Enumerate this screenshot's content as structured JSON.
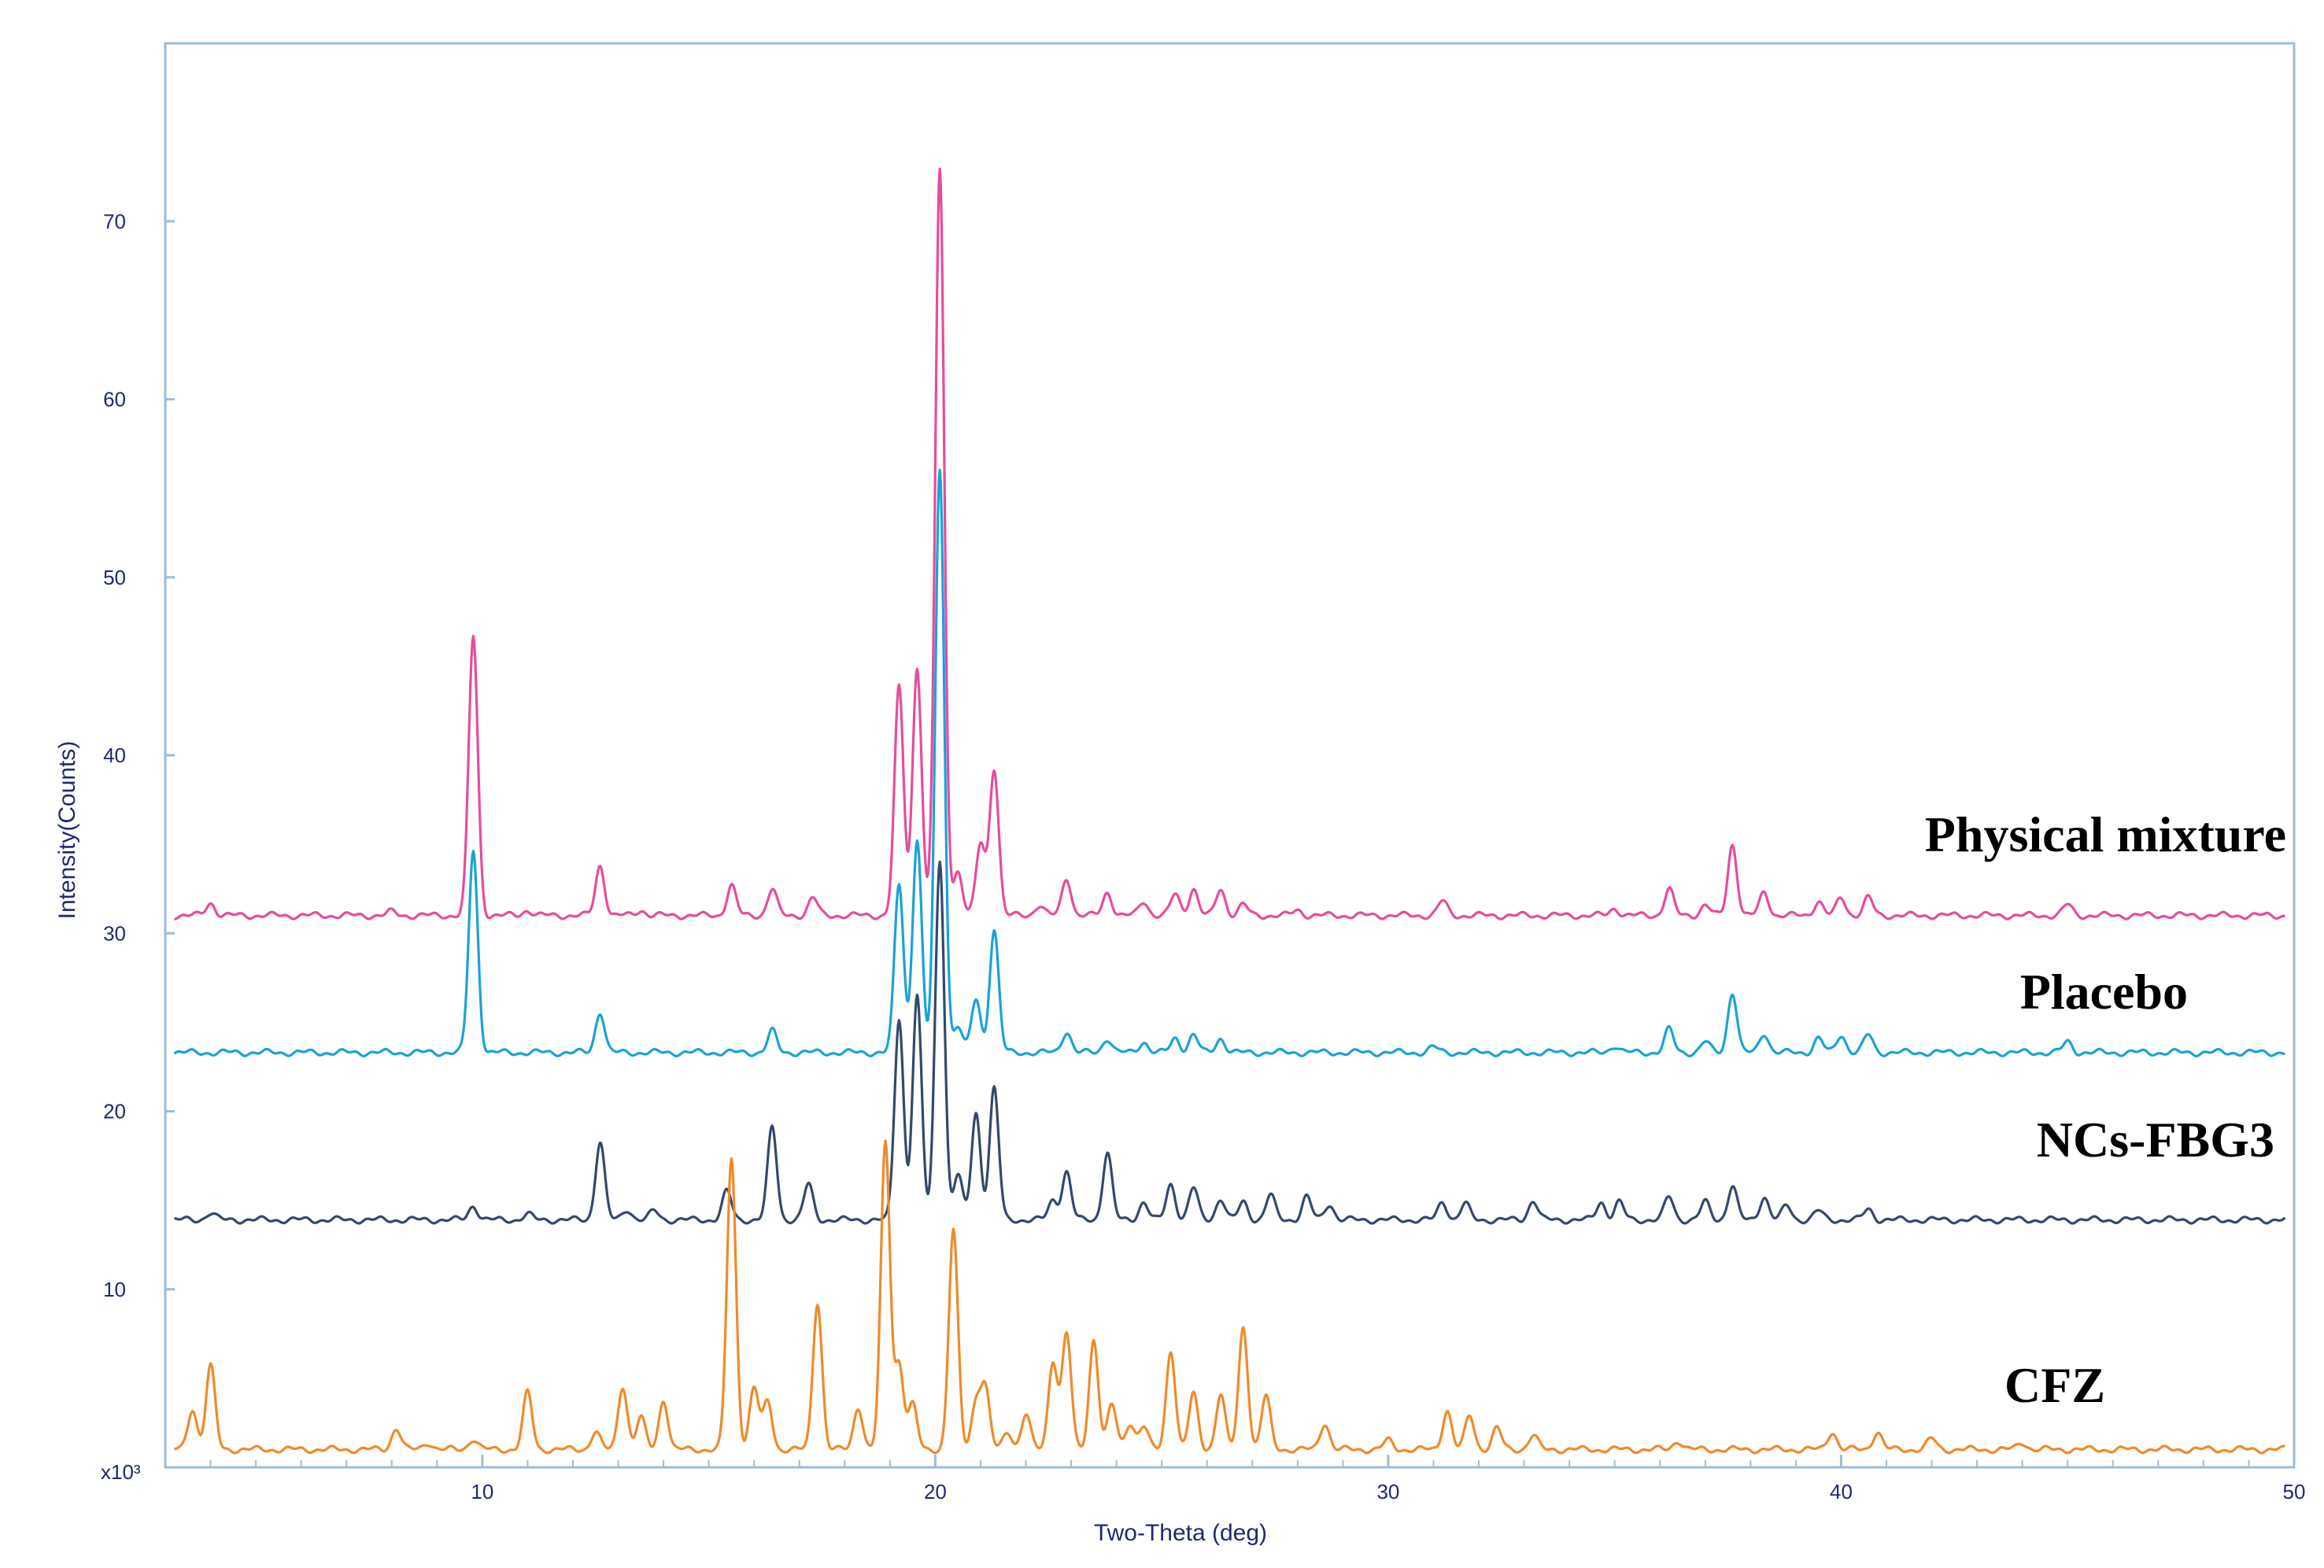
{
  "chart_data": {
    "type": "line",
    "xlabel": "Two-Theta (deg)",
    "ylabel": "Intensity(Counts)",
    "y_multiplier_label": "x10³",
    "xlim": [
      3,
      50
    ],
    "ylim": [
      0,
      80
    ],
    "x_ticks": [
      10,
      20,
      30,
      40,
      50
    ],
    "y_ticks": [
      10,
      20,
      30,
      40,
      50,
      60,
      70
    ],
    "grid": false,
    "series": [
      {
        "name": "Physical mixture",
        "color": "#e64c9e",
        "baseline": 31,
        "peaks": [
          [
            4.0,
            0.7
          ],
          [
            8.0,
            0.2
          ],
          [
            9.8,
            15.7
          ],
          [
            11.0,
            0.3
          ],
          [
            12.6,
            2.8
          ],
          [
            13.5,
            0.3
          ],
          [
            15.5,
            1.7
          ],
          [
            16.4,
            1.5
          ],
          [
            17.3,
            1.0
          ],
          [
            19.2,
            12.8
          ],
          [
            19.6,
            14.0
          ],
          [
            20.1,
            41.8
          ],
          [
            20.5,
            2.5
          ],
          [
            21.0,
            4.0
          ],
          [
            21.3,
            8.3
          ],
          [
            22.3,
            0.6
          ],
          [
            22.9,
            2.1
          ],
          [
            23.8,
            1.3
          ],
          [
            24.6,
            0.8
          ],
          [
            25.3,
            1.2
          ],
          [
            25.7,
            1.5
          ],
          [
            26.3,
            1.5
          ],
          [
            26.8,
            0.6
          ],
          [
            28.0,
            0.3
          ],
          [
            31.2,
            0.8
          ],
          [
            35.0,
            0.4
          ],
          [
            36.2,
            1.5
          ],
          [
            37.0,
            0.6
          ],
          [
            37.6,
            4.0
          ],
          [
            38.3,
            1.3
          ],
          [
            39.5,
            0.8
          ],
          [
            40.0,
            1.0
          ],
          [
            40.6,
            1.0
          ],
          [
            45.0,
            0.6
          ]
        ]
      },
      {
        "name": "Placebo",
        "color": "#1aa3d6",
        "baseline": 23.3,
        "peaks": [
          [
            9.8,
            11.3
          ],
          [
            12.6,
            2.3
          ],
          [
            16.4,
            1.2
          ],
          [
            19.2,
            9.5
          ],
          [
            19.6,
            12.0
          ],
          [
            20.1,
            32.7
          ],
          [
            20.5,
            1.5
          ],
          [
            20.9,
            3.0
          ],
          [
            21.3,
            6.9
          ],
          [
            22.9,
            1.2
          ],
          [
            23.8,
            0.8
          ],
          [
            24.6,
            0.6
          ],
          [
            25.3,
            0.8
          ],
          [
            25.7,
            1.0
          ],
          [
            26.3,
            0.8
          ],
          [
            31.0,
            0.3
          ],
          [
            35.0,
            0.4
          ],
          [
            36.2,
            1.3
          ],
          [
            37.0,
            0.6
          ],
          [
            37.6,
            3.4
          ],
          [
            38.3,
            1.1
          ],
          [
            39.5,
            0.8
          ],
          [
            40.0,
            1.0
          ],
          [
            40.6,
            1.0
          ],
          [
            45.0,
            0.6
          ]
        ]
      },
      {
        "name": "NCs-FBG3",
        "color": "#33496e",
        "baseline": 13.9,
        "peaks": [
          [
            4.0,
            0.4
          ],
          [
            9.8,
            0.8
          ],
          [
            11.0,
            0.3
          ],
          [
            12.6,
            4.4
          ],
          [
            13.2,
            0.6
          ],
          [
            13.8,
            0.5
          ],
          [
            15.4,
            1.6
          ],
          [
            16.4,
            5.2
          ],
          [
            17.2,
            2.0
          ],
          [
            19.2,
            11.3
          ],
          [
            19.6,
            12.5
          ],
          [
            20.1,
            20.3
          ],
          [
            20.5,
            2.5
          ],
          [
            20.9,
            6.0
          ],
          [
            21.3,
            7.4
          ],
          [
            22.6,
            1.1
          ],
          [
            22.9,
            2.7
          ],
          [
            23.8,
            3.8
          ],
          [
            24.6,
            1.0
          ],
          [
            25.2,
            2.0
          ],
          [
            25.7,
            1.8
          ],
          [
            26.3,
            1.2
          ],
          [
            26.8,
            1.0
          ],
          [
            27.4,
            1.4
          ],
          [
            28.2,
            1.3
          ],
          [
            28.7,
            0.9
          ],
          [
            31.2,
            1.0
          ],
          [
            31.7,
            0.9
          ],
          [
            33.2,
            1.1
          ],
          [
            34.7,
            1.0
          ],
          [
            35.1,
            1.0
          ],
          [
            36.2,
            1.3
          ],
          [
            37.0,
            1.0
          ],
          [
            37.6,
            1.9
          ],
          [
            38.3,
            1.3
          ],
          [
            38.8,
            0.8
          ],
          [
            39.5,
            0.5
          ],
          [
            40.6,
            0.6
          ]
        ]
      },
      {
        "name": "CFZ",
        "color": "#f08a2a",
        "baseline": 1.0,
        "peaks": [
          [
            3.6,
            2.3
          ],
          [
            4.0,
            4.7
          ],
          [
            8.1,
            1.2
          ],
          [
            8.8,
            0.4
          ],
          [
            9.8,
            0.6
          ],
          [
            11.0,
            3.2
          ],
          [
            12.5,
            1.0
          ],
          [
            13.1,
            3.6
          ],
          [
            13.5,
            1.8
          ],
          [
            14.0,
            2.8
          ],
          [
            15.5,
            16.3
          ],
          [
            16.0,
            3.5
          ],
          [
            16.3,
            2.7
          ],
          [
            17.4,
            8.3
          ],
          [
            18.3,
            2.4
          ],
          [
            18.9,
            17.2
          ],
          [
            19.2,
            4.8
          ],
          [
            19.5,
            2.5
          ],
          [
            20.4,
            12.3
          ],
          [
            20.9,
            2.6
          ],
          [
            21.1,
            3.4
          ],
          [
            21.6,
            1.0
          ],
          [
            22.0,
            2.0
          ],
          [
            22.6,
            5.0
          ],
          [
            22.9,
            6.5
          ],
          [
            23.5,
            6.2
          ],
          [
            23.9,
            2.5
          ],
          [
            24.3,
            1.5
          ],
          [
            24.6,
            1.3
          ],
          [
            25.2,
            5.6
          ],
          [
            25.7,
            3.1
          ],
          [
            26.3,
            3.1
          ],
          [
            26.8,
            6.9
          ],
          [
            27.3,
            3.0
          ],
          [
            28.6,
            1.5
          ],
          [
            30.0,
            0.5
          ],
          [
            31.3,
            2.2
          ],
          [
            31.8,
            1.9
          ],
          [
            32.4,
            1.2
          ],
          [
            33.2,
            0.8
          ],
          [
            36.4,
            0.5
          ],
          [
            39.8,
            1.0
          ],
          [
            40.8,
            1.0
          ],
          [
            42.0,
            0.6
          ],
          [
            44.0,
            0.4
          ]
        ]
      }
    ]
  }
}
